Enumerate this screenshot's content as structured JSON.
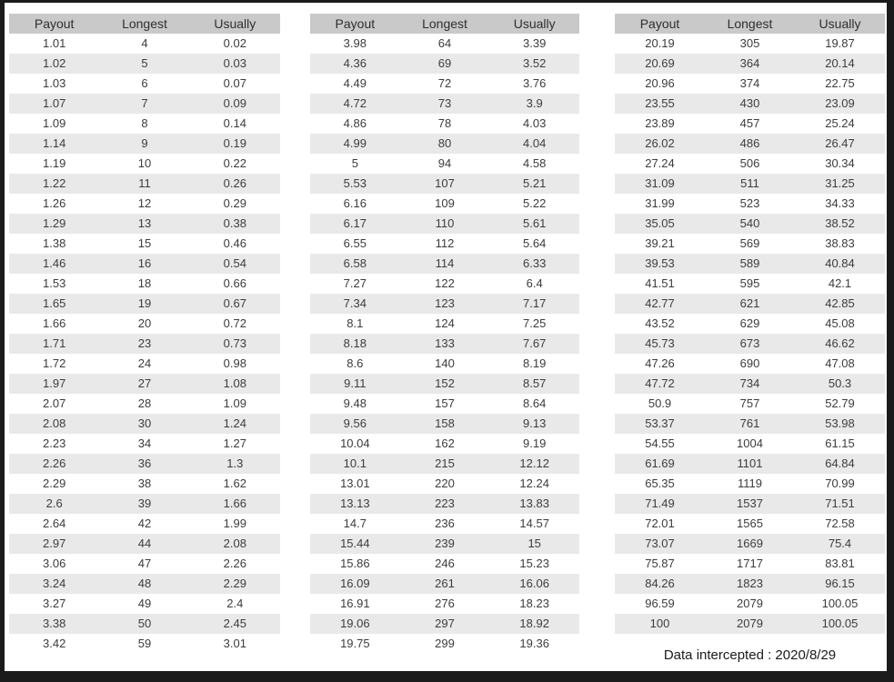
{
  "columns": [
    "Payout",
    "Longest",
    "Usually"
  ],
  "tables": [
    {
      "rows": [
        [
          "1.01",
          "4",
          "0.02"
        ],
        [
          "1.02",
          "5",
          "0.03"
        ],
        [
          "1.03",
          "6",
          "0.07"
        ],
        [
          "1.07",
          "7",
          "0.09"
        ],
        [
          "1.09",
          "8",
          "0.14"
        ],
        [
          "1.14",
          "9",
          "0.19"
        ],
        [
          "1.19",
          "10",
          "0.22"
        ],
        [
          "1.22",
          "11",
          "0.26"
        ],
        [
          "1.26",
          "12",
          "0.29"
        ],
        [
          "1.29",
          "13",
          "0.38"
        ],
        [
          "1.38",
          "15",
          "0.46"
        ],
        [
          "1.46",
          "16",
          "0.54"
        ],
        [
          "1.53",
          "18",
          "0.66"
        ],
        [
          "1.65",
          "19",
          "0.67"
        ],
        [
          "1.66",
          "20",
          "0.72"
        ],
        [
          "1.71",
          "23",
          "0.73"
        ],
        [
          "1.72",
          "24",
          "0.98"
        ],
        [
          "1.97",
          "27",
          "1.08"
        ],
        [
          "2.07",
          "28",
          "1.09"
        ],
        [
          "2.08",
          "30",
          "1.24"
        ],
        [
          "2.23",
          "34",
          "1.27"
        ],
        [
          "2.26",
          "36",
          "1.3"
        ],
        [
          "2.29",
          "38",
          "1.62"
        ],
        [
          "2.6",
          "39",
          "1.66"
        ],
        [
          "2.64",
          "42",
          "1.99"
        ],
        [
          "2.97",
          "44",
          "2.08"
        ],
        [
          "3.06",
          "47",
          "2.26"
        ],
        [
          "3.24",
          "48",
          "2.29"
        ],
        [
          "3.27",
          "49",
          "2.4"
        ],
        [
          "3.38",
          "50",
          "2.45"
        ],
        [
          "3.42",
          "59",
          "3.01"
        ]
      ]
    },
    {
      "rows": [
        [
          "3.98",
          "64",
          "3.39"
        ],
        [
          "4.36",
          "69",
          "3.52"
        ],
        [
          "4.49",
          "72",
          "3.76"
        ],
        [
          "4.72",
          "73",
          "3.9"
        ],
        [
          "4.86",
          "78",
          "4.03"
        ],
        [
          "4.99",
          "80",
          "4.04"
        ],
        [
          "5",
          "94",
          "4.58"
        ],
        [
          "5.53",
          "107",
          "5.21"
        ],
        [
          "6.16",
          "109",
          "5.22"
        ],
        [
          "6.17",
          "110",
          "5.61"
        ],
        [
          "6.55",
          "112",
          "5.64"
        ],
        [
          "6.58",
          "114",
          "6.33"
        ],
        [
          "7.27",
          "122",
          "6.4"
        ],
        [
          "7.34",
          "123",
          "7.17"
        ],
        [
          "8.1",
          "124",
          "7.25"
        ],
        [
          "8.18",
          "133",
          "7.67"
        ],
        [
          "8.6",
          "140",
          "8.19"
        ],
        [
          "9.11",
          "152",
          "8.57"
        ],
        [
          "9.48",
          "157",
          "8.64"
        ],
        [
          "9.56",
          "158",
          "9.13"
        ],
        [
          "10.04",
          "162",
          "9.19"
        ],
        [
          "10.1",
          "215",
          "12.12"
        ],
        [
          "13.01",
          "220",
          "12.24"
        ],
        [
          "13.13",
          "223",
          "13.83"
        ],
        [
          "14.7",
          "236",
          "14.57"
        ],
        [
          "15.44",
          "239",
          "15"
        ],
        [
          "15.86",
          "246",
          "15.23"
        ],
        [
          "16.09",
          "261",
          "16.06"
        ],
        [
          "16.91",
          "276",
          "18.23"
        ],
        [
          "19.06",
          "297",
          "18.92"
        ],
        [
          "19.75",
          "299",
          "19.36"
        ]
      ]
    },
    {
      "rows": [
        [
          "20.19",
          "305",
          "19.87"
        ],
        [
          "20.69",
          "364",
          "20.14"
        ],
        [
          "20.96",
          "374",
          "22.75"
        ],
        [
          "23.55",
          "430",
          "23.09"
        ],
        [
          "23.89",
          "457",
          "25.24"
        ],
        [
          "26.02",
          "486",
          "26.47"
        ],
        [
          "27.24",
          "506",
          "30.34"
        ],
        [
          "31.09",
          "511",
          "31.25"
        ],
        [
          "31.99",
          "523",
          "34.33"
        ],
        [
          "35.05",
          "540",
          "38.52"
        ],
        [
          "39.21",
          "569",
          "38.83"
        ],
        [
          "39.53",
          "589",
          "40.84"
        ],
        [
          "41.51",
          "595",
          "42.1"
        ],
        [
          "42.77",
          "621",
          "42.85"
        ],
        [
          "43.52",
          "629",
          "45.08"
        ],
        [
          "45.73",
          "673",
          "46.62"
        ],
        [
          "47.26",
          "690",
          "47.08"
        ],
        [
          "47.72",
          "734",
          "50.3"
        ],
        [
          "50.9",
          "757",
          "52.79"
        ],
        [
          "53.37",
          "761",
          "53.98"
        ],
        [
          "54.55",
          "1004",
          "61.15"
        ],
        [
          "61.69",
          "1101",
          "64.84"
        ],
        [
          "65.35",
          "1119",
          "70.99"
        ],
        [
          "71.49",
          "1537",
          "71.51"
        ],
        [
          "72.01",
          "1565",
          "72.58"
        ],
        [
          "73.07",
          "1669",
          "75.4"
        ],
        [
          "75.87",
          "1717",
          "83.81"
        ],
        [
          "84.26",
          "1823",
          "96.15"
        ],
        [
          "96.59",
          "2079",
          "100.05"
        ],
        [
          "100",
          "2079",
          "100.05"
        ]
      ]
    }
  ],
  "footer": "Data intercepted : 2020/8/29",
  "colors": {
    "header_bg": "#c9c9c9",
    "row_alt_bg": "#e9e9e9",
    "frame": "#1b1b1b",
    "text": "#3c3c3c"
  }
}
